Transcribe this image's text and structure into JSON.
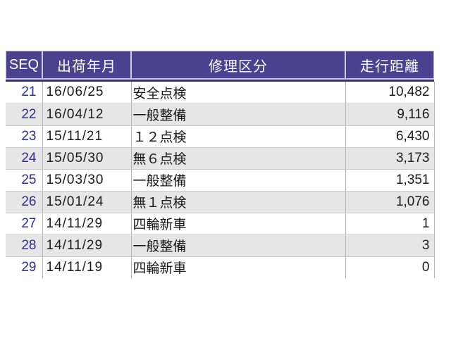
{
  "table": {
    "columns": [
      {
        "key": "seq",
        "label": "SEQ"
      },
      {
        "key": "date",
        "label": "出荷年月"
      },
      {
        "key": "category",
        "label": "修理区分"
      },
      {
        "key": "mileage",
        "label": "走行距離"
      }
    ],
    "rows": [
      {
        "seq": "21",
        "date": "16/06/25",
        "category": "安全点検",
        "mileage": "10,482"
      },
      {
        "seq": "22",
        "date": "16/04/12",
        "category": "一般整備",
        "mileage": "9,116"
      },
      {
        "seq": "23",
        "date": "15/11/21",
        "category": "１２点検",
        "mileage": "6,430"
      },
      {
        "seq": "24",
        "date": "15/05/30",
        "category": "無６点検",
        "mileage": "3,173"
      },
      {
        "seq": "25",
        "date": "15/03/30",
        "category": "一般整備",
        "mileage": "1,351"
      },
      {
        "seq": "26",
        "date": "15/01/24",
        "category": "無１点検",
        "mileage": "1,076"
      },
      {
        "seq": "27",
        "date": "14/11/29",
        "category": "四輪新車",
        "mileage": "1"
      },
      {
        "seq": "28",
        "date": "14/11/29",
        "category": "一般整備",
        "mileage": "3"
      },
      {
        "seq": "29",
        "date": "14/11/19",
        "category": "四輪新車",
        "mileage": "0"
      }
    ],
    "colors": {
      "header_bg": "#4a4191",
      "header_text": "#ffffff",
      "row_alt_bg": "#e6e6e6",
      "seq_text": "#2e2e8f",
      "body_text": "#1a1a1a",
      "grid_line": "#b3b3b3"
    }
  }
}
